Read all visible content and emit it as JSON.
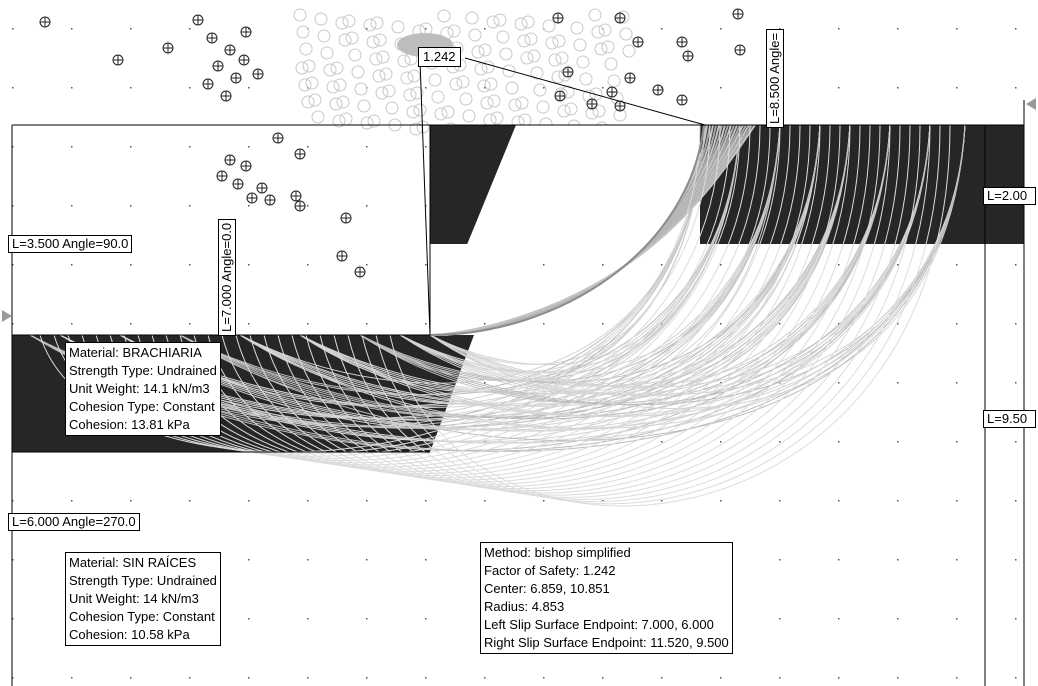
{
  "fos_label": "1.242",
  "boundary_labels": {
    "left_upper": "L=3.500 Angle=90.0",
    "left_lower": "L=6.000 Angle=270.0",
    "inner_vertical": "L=7.000 Angle=0.0",
    "top_vertical": "L=8.500 Angle=",
    "right_upper": "L=2.00",
    "right_lower": "L=9.50"
  },
  "materials": [
    {
      "material": "Material: BRACHIARIA",
      "strength_type": "Strength Type: Undrained",
      "unit_weight": "Unit Weight: 14.1 kN/m3",
      "cohesion_type": "Cohesion Type: Constant",
      "cohesion": "Cohesion: 13.81 kPa"
    },
    {
      "material": "Material: SIN RAÍCES",
      "strength_type": "Strength Type: Undrained",
      "unit_weight": "Unit Weight: 14 kN/m3",
      "cohesion_type": "Cohesion Type: Constant",
      "cohesion": "Cohesion: 10.58 kPa"
    }
  ],
  "method_info": {
    "method": "Method: bishop simplified",
    "factor_of_safety": "Factor of Safety: 1.242",
    "center": "Center: 6.859, 10.851",
    "radius": "Radius: 4.853",
    "left_endpoint": "Left Slip Surface Endpoint: 7.000, 6.000",
    "right_endpoint": "Right Slip Surface Endpoint: 11.520, 9.500"
  },
  "colors": {
    "soil_dark": "#262626",
    "slip_light": "#d4d4d4",
    "slip_mid": "#bdbdbd",
    "grid_center": "#222222"
  }
}
